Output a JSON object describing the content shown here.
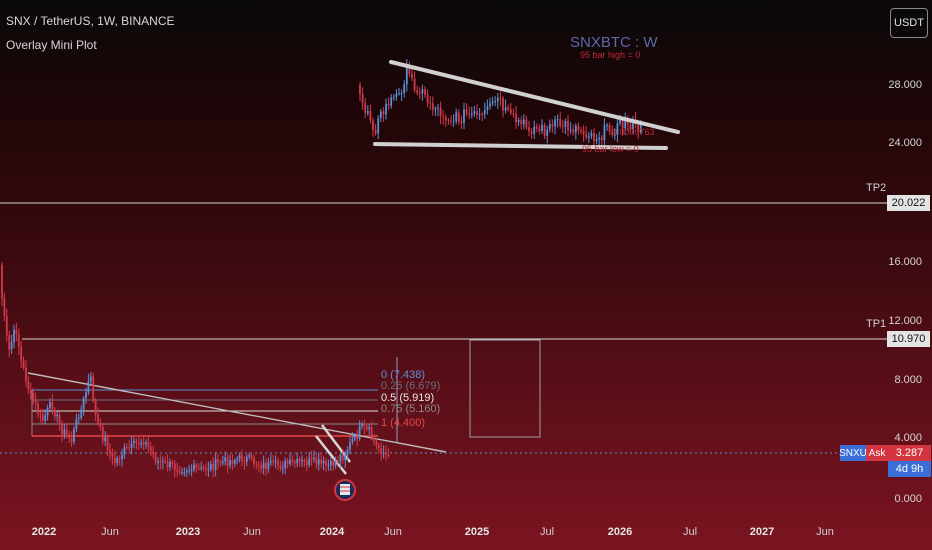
{
  "header": {
    "symbol_line": "SNX / TetherUS, 1W, BINANCE",
    "indicator_line": "Overlay Mini Plot"
  },
  "currency_button": "USDT",
  "price_axis": {
    "labels": [
      "28.000",
      "24.000",
      "16.000",
      "12.000",
      "8.000",
      "4.000",
      "0.000"
    ]
  },
  "time_axis": {
    "labels": [
      {
        "text": "2022",
        "bold": true
      },
      {
        "text": "Jun",
        "bold": false
      },
      {
        "text": "2023",
        "bold": true
      },
      {
        "text": "Jun",
        "bold": false
      },
      {
        "text": "2024",
        "bold": true
      },
      {
        "text": "Jun",
        "bold": false
      },
      {
        "text": "2025",
        "bold": true
      },
      {
        "text": "Jul",
        "bold": false
      },
      {
        "text": "2026",
        "bold": true
      },
      {
        "text": "Jul",
        "bold": false
      },
      {
        "text": "2027",
        "bold": true
      },
      {
        "text": "Jun",
        "bold": false
      }
    ]
  },
  "targets": {
    "tp2": {
      "label": "TP2",
      "value": "20.022"
    },
    "tp1": {
      "label": "TP1",
      "value": "10.970"
    }
  },
  "current_price": {
    "symbol": "SNXU",
    "side": "Ask",
    "value": "3.287",
    "countdown": "4d 9h"
  },
  "fibonacci": [
    {
      "text": "0 (7.438)",
      "color": "#5b8fd6"
    },
    {
      "text": "0.25 (6.679)",
      "color": "#6c6c7c"
    },
    {
      "text": "0.5 (5.919)",
      "color": "#e8e8e8"
    },
    {
      "text": "0.75 (5.160)",
      "color": "#8a8a8a"
    },
    {
      "text": "1 (4.400)",
      "color": "#e34848"
    }
  ],
  "mini_plot": {
    "title": "SNXBTC : W",
    "high_note": "95 bar high = 0",
    "price_note": "0.0000763",
    "low_note": "95 bar low = 0"
  },
  "colors": {
    "up_candle": "#5b8fd6",
    "down_candle": "#d23a4a",
    "trendline": "#bdbdbd",
    "price_blue": "#3a6fd8",
    "ask_red": "#d2353f"
  }
}
